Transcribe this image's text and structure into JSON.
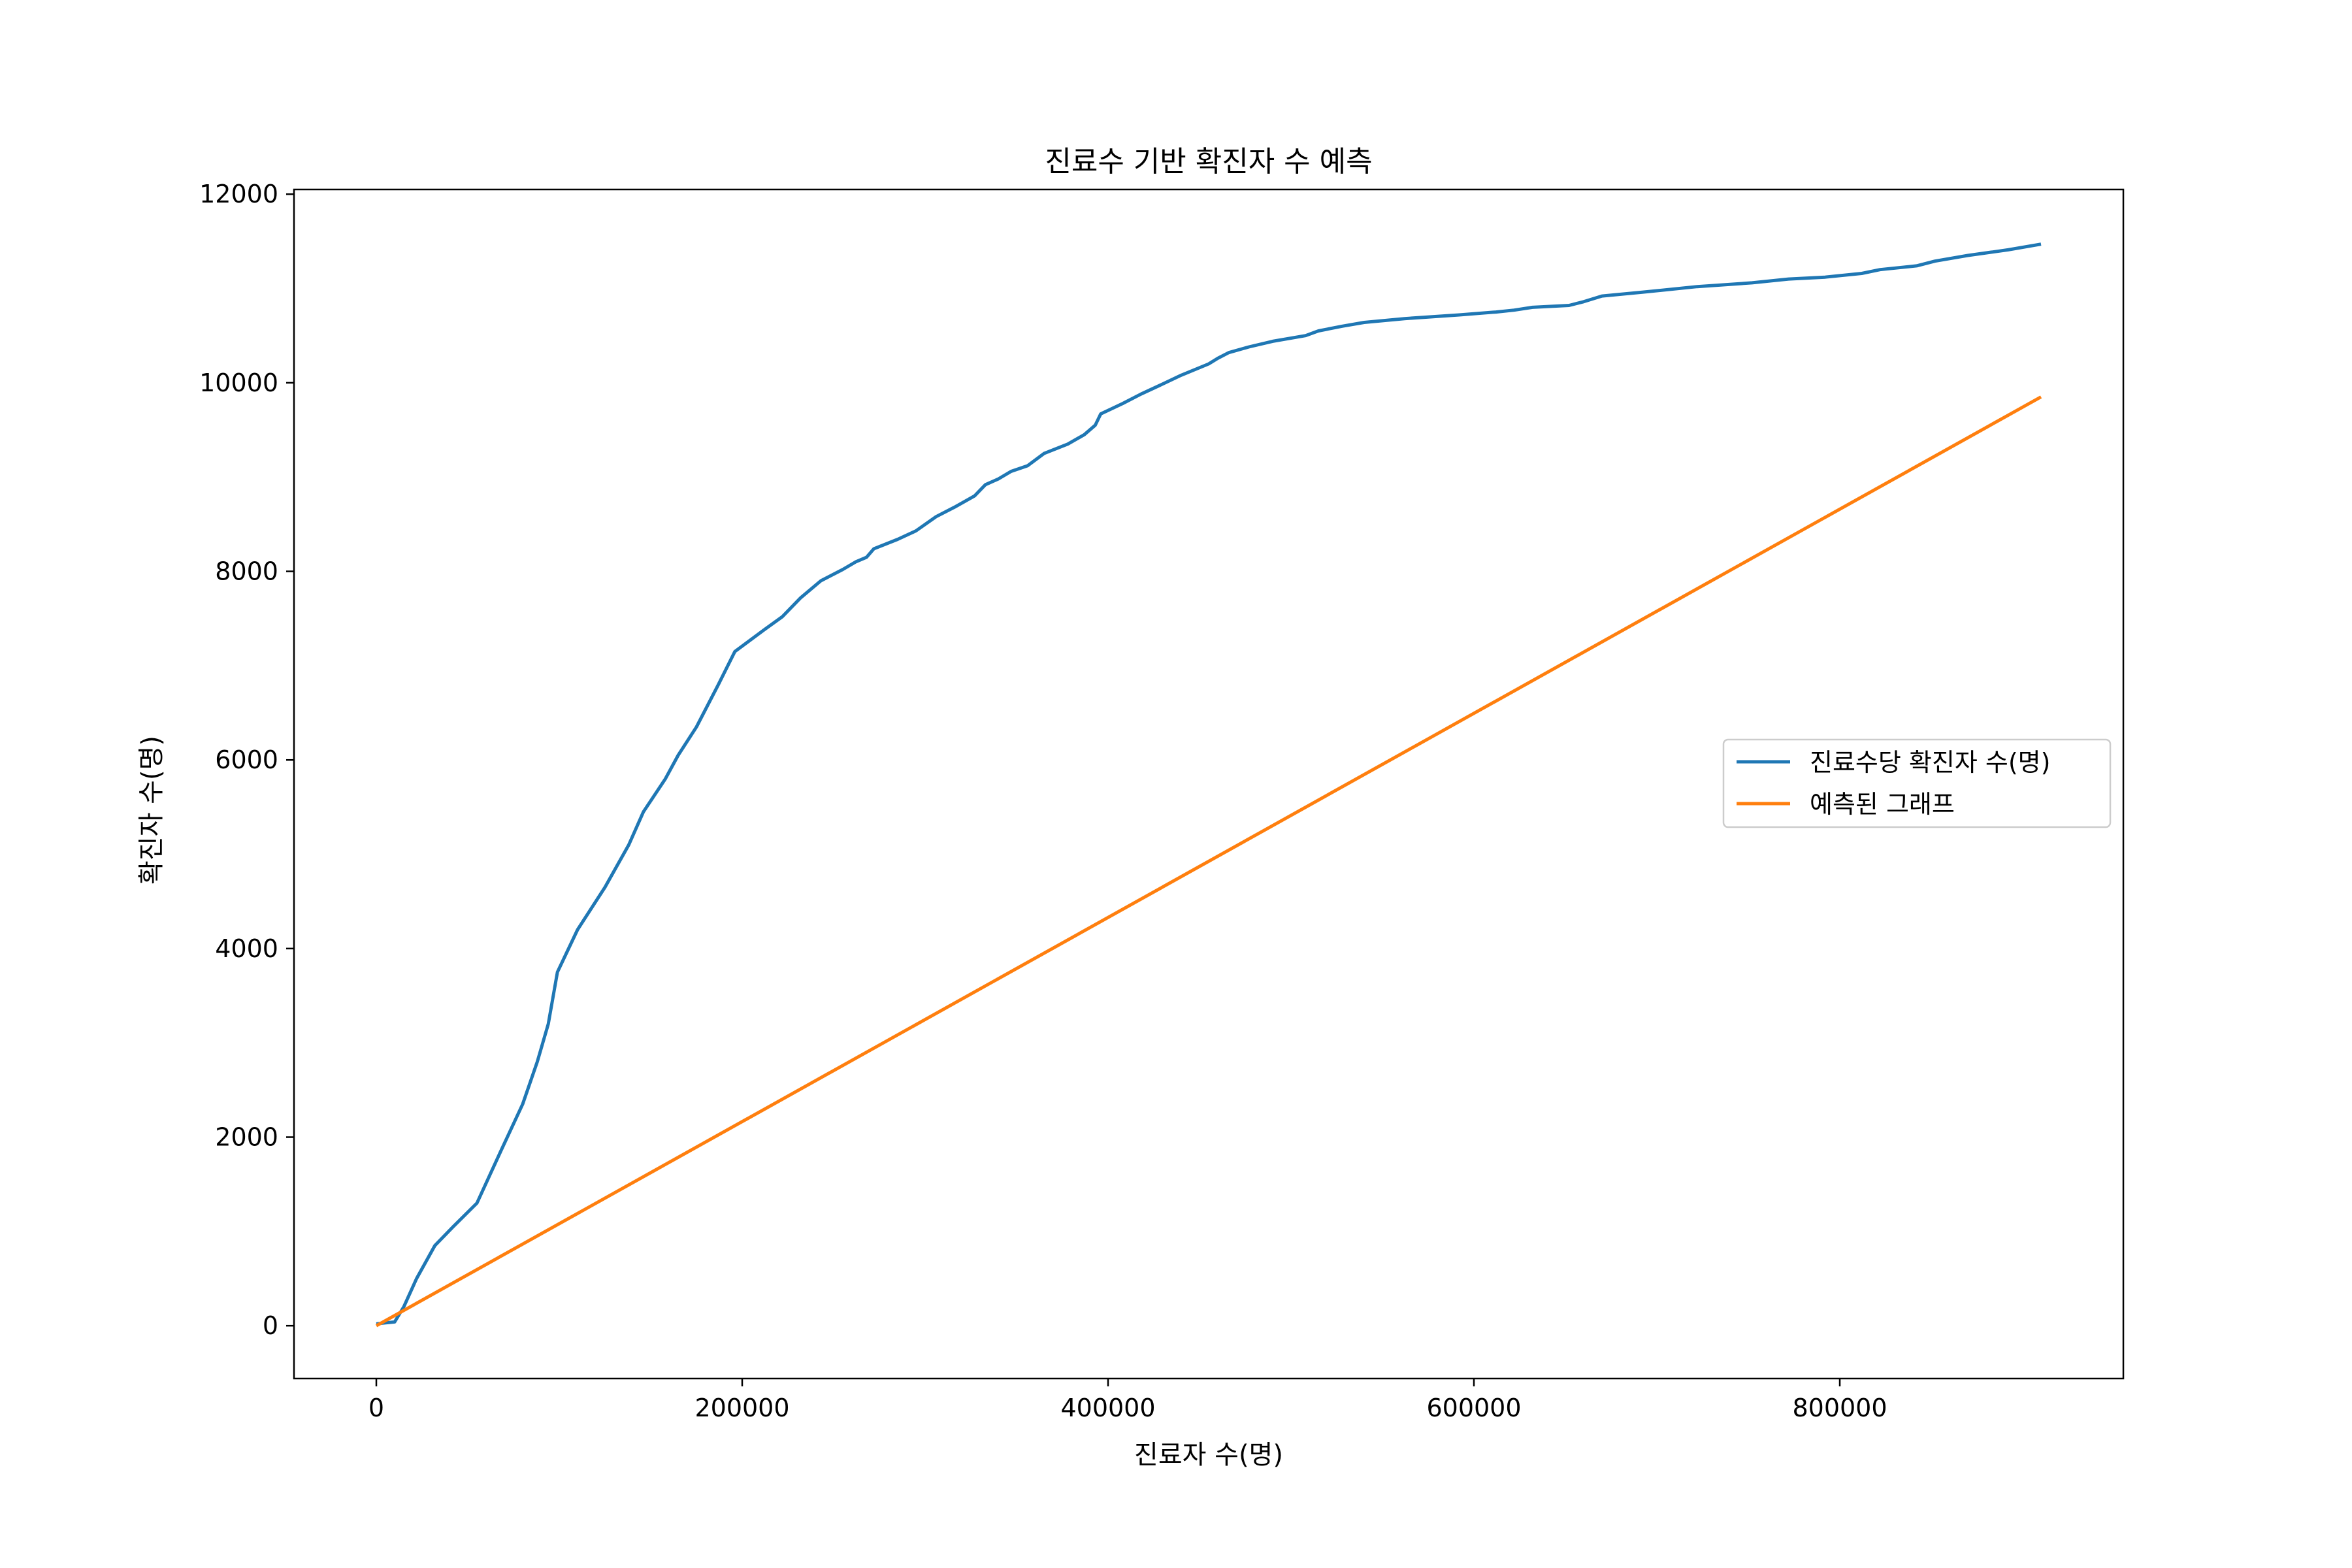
{
  "chart_data": {
    "type": "line",
    "title": "진료수 기반 확진자 수 예측",
    "xlabel": "진료자 수(명)",
    "ylabel": "확진자 수(명)",
    "xlim": [
      -45000,
      955000
    ],
    "ylim": [
      -560,
      12050
    ],
    "xticks": [
      0,
      200000,
      400000,
      600000,
      800000
    ],
    "xtick_labels": [
      "0",
      "200000",
      "400000",
      "600000",
      "800000"
    ],
    "yticks": [
      0,
      2000,
      4000,
      6000,
      8000,
      10000,
      12000
    ],
    "ytick_labels": [
      "0",
      "2000",
      "4000",
      "6000",
      "8000",
      "10000",
      "12000"
    ],
    "grid": false,
    "legend_position": "center-right",
    "series": [
      {
        "name": "진료수당 확진자 수(명)",
        "color": "#1f77b4",
        "x": [
          0,
          5000,
          10000,
          15000,
          22000,
          32000,
          42000,
          55000,
          68000,
          80000,
          88000,
          94000,
          99000,
          110000,
          125000,
          138000,
          146000,
          158000,
          165000,
          175000,
          187000,
          196000,
          212000,
          222000,
          232000,
          243000,
          255000,
          262000,
          268000,
          272000,
          285000,
          295000,
          306000,
          316000,
          327000,
          333000,
          340000,
          347000,
          356000,
          365000,
          378000,
          387000,
          393000,
          396000,
          408000,
          418000,
          428000,
          440000,
          455000,
          460000,
          466000,
          477000,
          490000,
          508000,
          515000,
          528000,
          540000,
          562000,
          592000,
          612000,
          622000,
          632000,
          652000,
          660000,
          670000,
          692000,
          722000,
          752000,
          772000,
          792000,
          812000,
          822000,
          842000,
          852000,
          870000,
          892000,
          910000
        ],
        "y": [
          20,
          30,
          40,
          200,
          500,
          850,
          1050,
          1300,
          1850,
          2350,
          2800,
          3200,
          3750,
          4200,
          4650,
          5100,
          5450,
          5800,
          6050,
          6350,
          6800,
          7150,
          7380,
          7520,
          7720,
          7900,
          8020,
          8100,
          8150,
          8240,
          8340,
          8430,
          8580,
          8680,
          8800,
          8920,
          8980,
          9060,
          9120,
          9250,
          9350,
          9450,
          9550,
          9670,
          9780,
          9880,
          9970,
          10080,
          10200,
          10260,
          10320,
          10380,
          10440,
          10500,
          10550,
          10600,
          10640,
          10680,
          10720,
          10750,
          10770,
          10800,
          10820,
          10860,
          10920,
          10960,
          11020,
          11060,
          11100,
          11120,
          11160,
          11200,
          11240,
          11290,
          11350,
          11410,
          11470
        ]
      },
      {
        "name": "예측된 그래프",
        "color": "#ff7f0e",
        "x": [
          0,
          910000
        ],
        "y": [
          0,
          9850
        ]
      }
    ]
  }
}
